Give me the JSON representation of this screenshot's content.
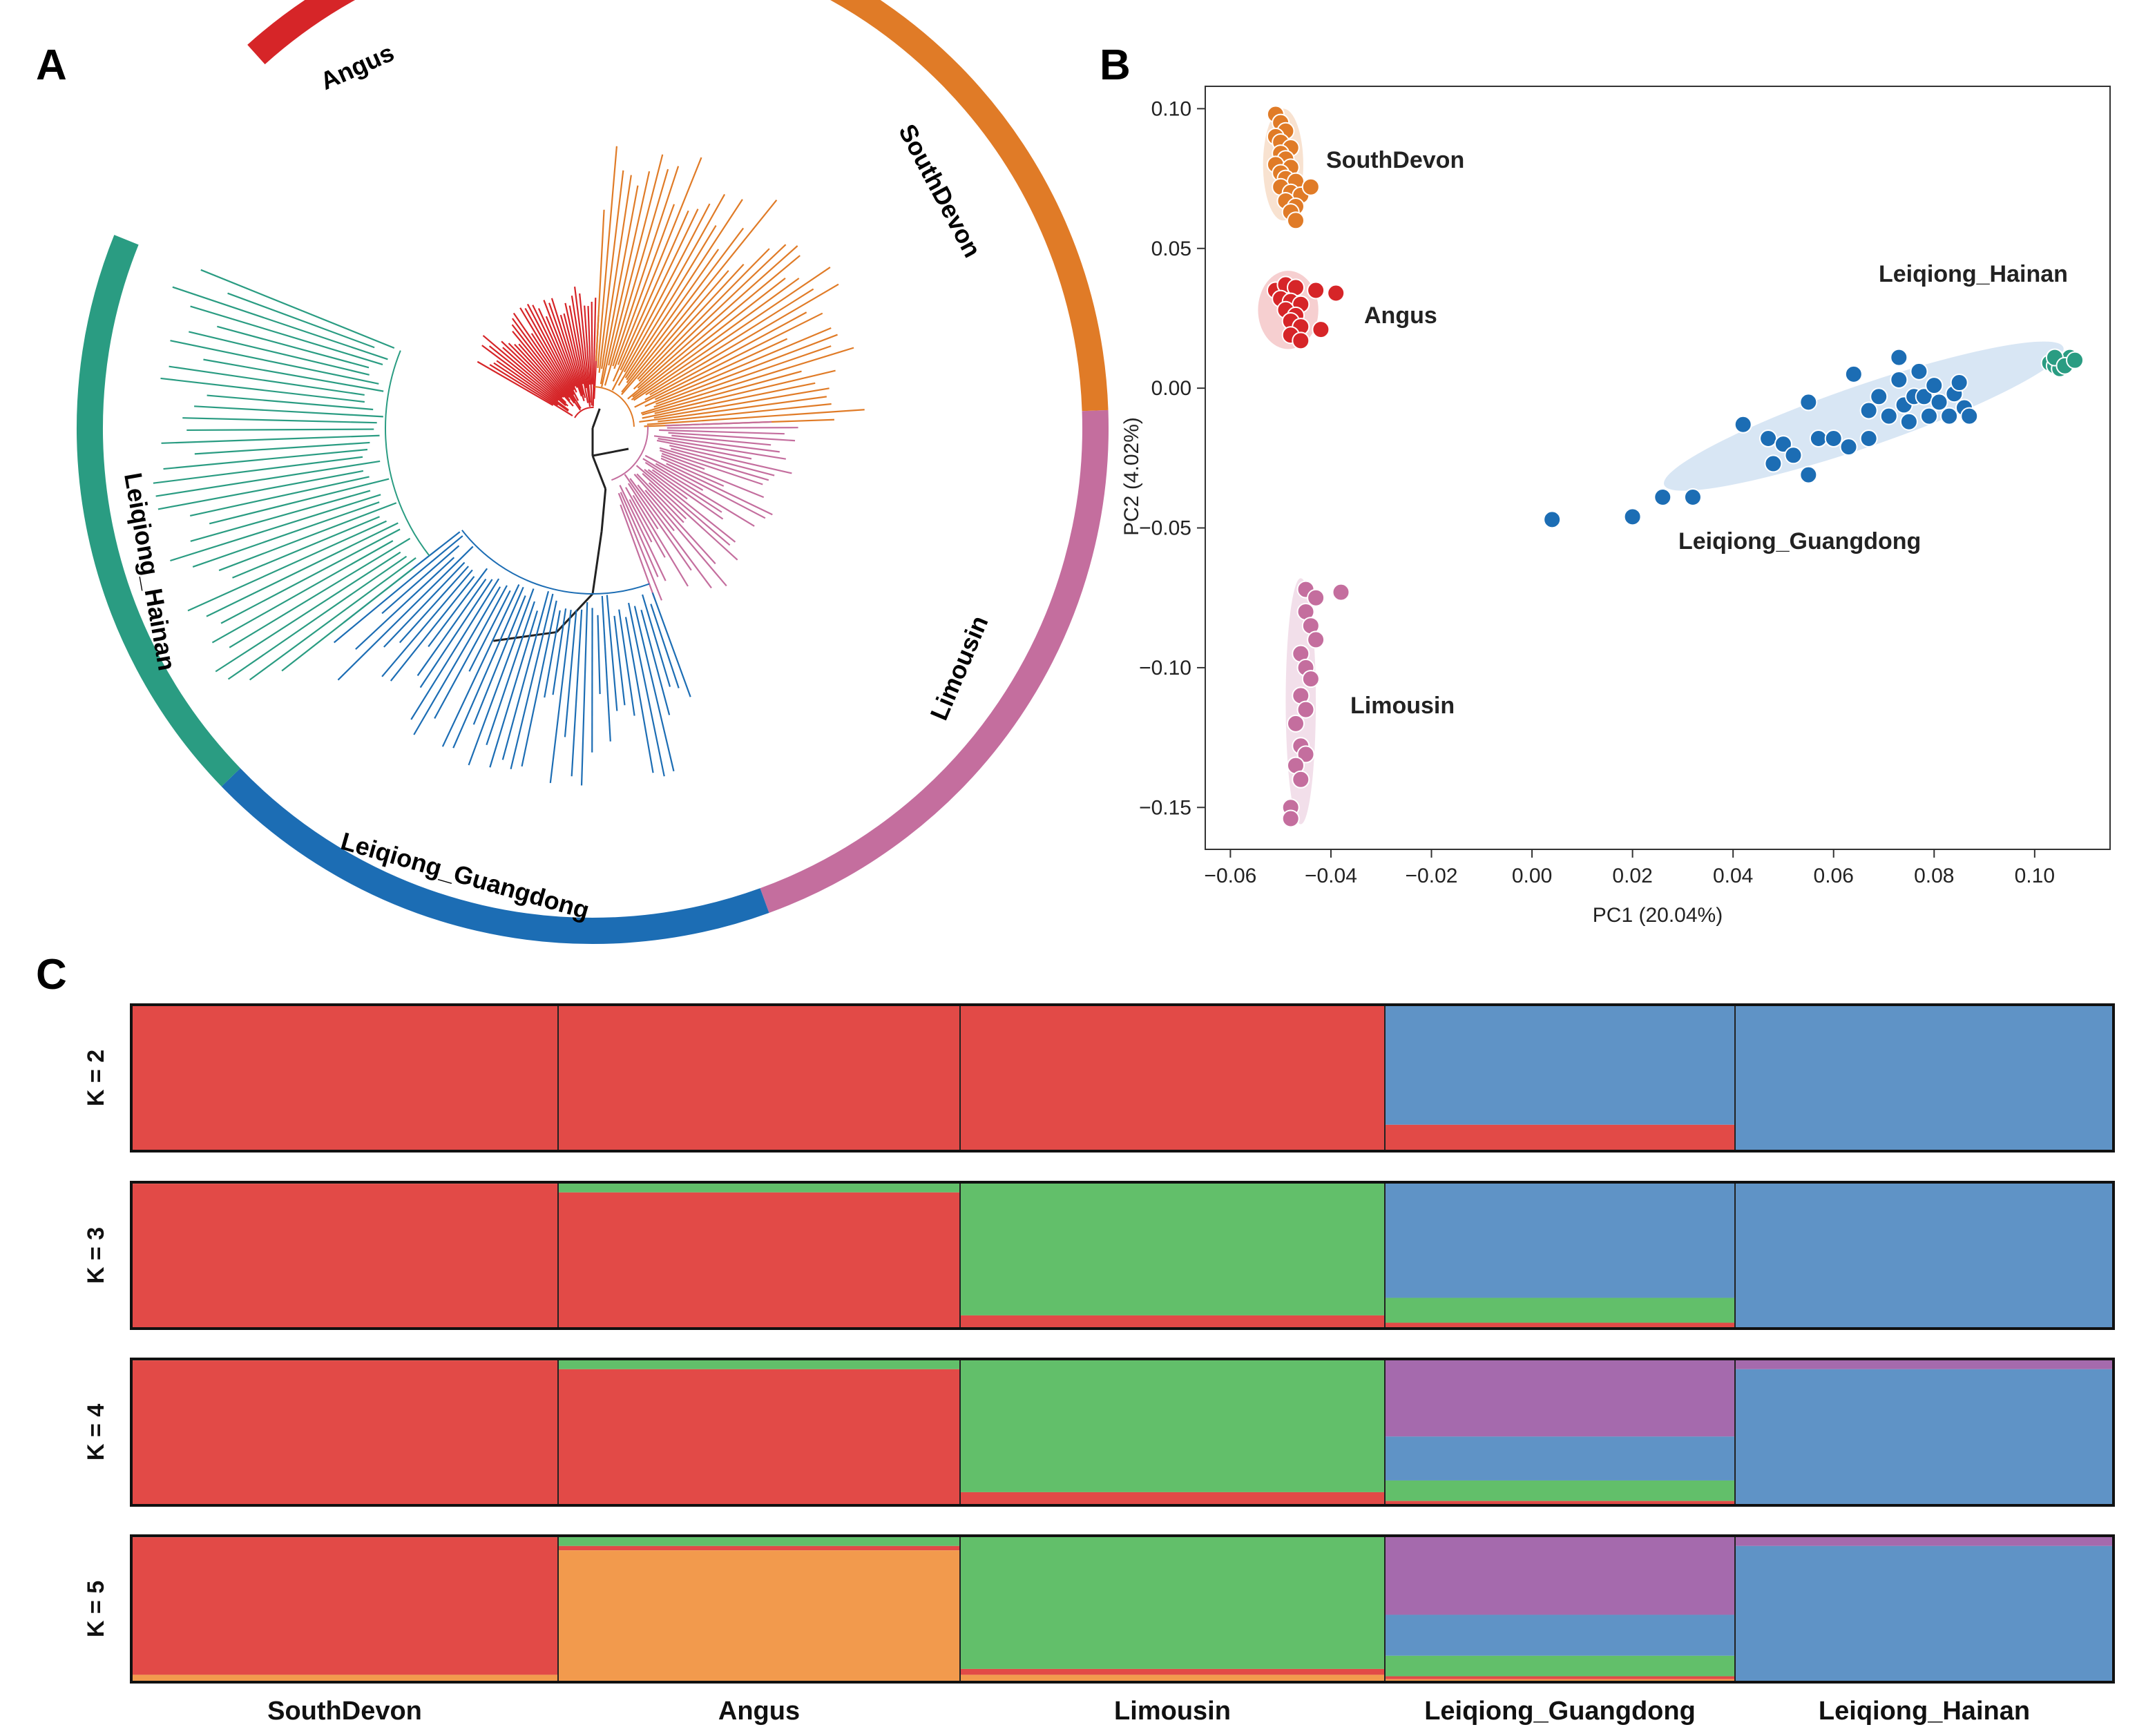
{
  "panels": {
    "a": "A",
    "b": "B",
    "c": "C"
  },
  "colors": {
    "SouthDevon": "#e07b27",
    "Angus": "#d62528",
    "Limousin": "#c46e9e",
    "Leiqiong_Guangdong": "#1c6db4",
    "Leiqiong_Hainan": "#2a9c82",
    "adm_red": "#e24a47",
    "adm_blue": "#5f93c6",
    "adm_green": "#62bf6a",
    "adm_purple": "#a56aad",
    "adm_orange": "#f29a4d"
  },
  "tree": {
    "groups": [
      {
        "name": "Angus",
        "label": "Angus"
      },
      {
        "name": "SouthDevon",
        "label": "SouthDevon"
      },
      {
        "name": "Limousin",
        "label": "Limousin"
      },
      {
        "name": "Leiqiong_Guangdong",
        "label": "Leiqiong_Guangdong"
      },
      {
        "name": "Leiqiong_Hainan",
        "label": "Leiqiong_Hainan"
      }
    ]
  },
  "chart_data": [
    {
      "type": "scatter",
      "title": "",
      "xlabel": "PC1 (20.04%)",
      "ylabel": "PC2 (4.02%)",
      "xlim": [
        -0.065,
        0.115
      ],
      "ylim": [
        -0.165,
        0.108
      ],
      "xticks": [
        -0.06,
        -0.04,
        -0.02,
        0.0,
        0.02,
        0.04,
        0.06,
        0.08,
        0.1
      ],
      "xtick_labels": [
        "−0.06",
        "−0.04",
        "−0.02",
        "0.00",
        "0.02",
        "0.04",
        "0.06",
        "0.08",
        "0.10"
      ],
      "yticks": [
        0.1,
        0.05,
        0.0,
        -0.05,
        -0.1,
        -0.15
      ],
      "ytick_labels": [
        "0.10",
        "0.05",
        "0.00",
        "−0.05",
        "−0.10",
        "−0.15"
      ],
      "grid": false,
      "series": [
        {
          "name": "SouthDevon",
          "label": "SouthDevon",
          "ellipse": {
            "cx": -0.0495,
            "cy": 0.08,
            "rx": 0.004,
            "ry": 0.02
          },
          "points": [
            [
              -0.051,
              0.098
            ],
            [
              -0.05,
              0.095
            ],
            [
              -0.049,
              0.092
            ],
            [
              -0.051,
              0.09
            ],
            [
              -0.05,
              0.088
            ],
            [
              -0.048,
              0.086
            ],
            [
              -0.05,
              0.084
            ],
            [
              -0.049,
              0.082
            ],
            [
              -0.051,
              0.08
            ],
            [
              -0.048,
              0.079
            ],
            [
              -0.05,
              0.077
            ],
            [
              -0.049,
              0.075
            ],
            [
              -0.047,
              0.074
            ],
            [
              -0.05,
              0.072
            ],
            [
              -0.048,
              0.07
            ],
            [
              -0.046,
              0.069
            ],
            [
              -0.044,
              0.072
            ],
            [
              -0.049,
              0.067
            ],
            [
              -0.047,
              0.065
            ],
            [
              -0.048,
              0.063
            ],
            [
              -0.047,
              0.06
            ]
          ]
        },
        {
          "name": "Angus",
          "label": "Angus",
          "ellipse": {
            "cx": -0.0485,
            "cy": 0.028,
            "rx": 0.006,
            "ry": 0.014
          },
          "points": [
            [
              -0.051,
              0.035
            ],
            [
              -0.049,
              0.037
            ],
            [
              -0.047,
              0.036
            ],
            [
              -0.043,
              0.035
            ],
            [
              -0.039,
              0.034
            ],
            [
              -0.05,
              0.032
            ],
            [
              -0.048,
              0.031
            ],
            [
              -0.046,
              0.03
            ],
            [
              -0.049,
              0.028
            ],
            [
              -0.047,
              0.026
            ],
            [
              -0.048,
              0.024
            ],
            [
              -0.046,
              0.022
            ],
            [
              -0.042,
              0.021
            ],
            [
              -0.048,
              0.019
            ],
            [
              -0.046,
              0.017
            ]
          ]
        },
        {
          "name": "Limousin",
          "label": "Limousin",
          "ellipse": {
            "cx": -0.046,
            "cy": -0.112,
            "rx": 0.003,
            "ry": 0.044
          },
          "points": [
            [
              -0.045,
              -0.072
            ],
            [
              -0.043,
              -0.075
            ],
            [
              -0.038,
              -0.073
            ],
            [
              -0.045,
              -0.08
            ],
            [
              -0.044,
              -0.085
            ],
            [
              -0.043,
              -0.09
            ],
            [
              -0.046,
              -0.095
            ],
            [
              -0.045,
              -0.1
            ],
            [
              -0.044,
              -0.104
            ],
            [
              -0.046,
              -0.11
            ],
            [
              -0.045,
              -0.115
            ],
            [
              -0.047,
              -0.12
            ],
            [
              -0.046,
              -0.128
            ],
            [
              -0.045,
              -0.131
            ],
            [
              -0.047,
              -0.135
            ],
            [
              -0.046,
              -0.14
            ],
            [
              -0.048,
              -0.15
            ],
            [
              -0.048,
              -0.154
            ]
          ]
        },
        {
          "name": "Leiqiong_Guangdong",
          "label": "Leiqiong_Guangdong",
          "ellipse": {
            "cx": 0.066,
            "cy": -0.01,
            "rx": 0.042,
            "ry": 0.011,
            "angle": -19
          },
          "points": [
            [
              0.004,
              -0.047
            ],
            [
              0.02,
              -0.046
            ],
            [
              0.026,
              -0.039
            ],
            [
              0.032,
              -0.039
            ],
            [
              0.042,
              -0.013
            ],
            [
              0.047,
              -0.018
            ],
            [
              0.048,
              -0.027
            ],
            [
              0.05,
              -0.02
            ],
            [
              0.052,
              -0.024
            ],
            [
              0.055,
              -0.005
            ],
            [
              0.055,
              -0.031
            ],
            [
              0.057,
              -0.018
            ],
            [
              0.06,
              -0.018
            ],
            [
              0.063,
              -0.021
            ],
            [
              0.064,
              0.005
            ],
            [
              0.067,
              -0.018
            ],
            [
              0.067,
              -0.008
            ],
            [
              0.069,
              -0.003
            ],
            [
              0.071,
              -0.01
            ],
            [
              0.073,
              0.011
            ],
            [
              0.073,
              0.003
            ],
            [
              0.074,
              -0.006
            ],
            [
              0.075,
              -0.012
            ],
            [
              0.076,
              -0.003
            ],
            [
              0.077,
              0.006
            ],
            [
              0.078,
              -0.003
            ],
            [
              0.079,
              -0.01
            ],
            [
              0.08,
              0.001
            ],
            [
              0.081,
              -0.005
            ],
            [
              0.083,
              -0.01
            ],
            [
              0.084,
              -0.002
            ],
            [
              0.085,
              0.002
            ],
            [
              0.086,
              -0.007
            ],
            [
              0.087,
              -0.01
            ]
          ]
        },
        {
          "name": "Leiqiong_Hainan",
          "label": "Leiqiong_Hainan",
          "ellipse": {
            "cx": 0.105,
            "cy": 0.009,
            "rx": 0.003,
            "ry": 0.003
          },
          "points": [
            [
              0.103,
              0.009
            ],
            [
              0.104,
              0.008
            ],
            [
              0.105,
              0.01
            ],
            [
              0.106,
              0.009
            ],
            [
              0.107,
              0.011
            ],
            [
              0.105,
              0.007
            ],
            [
              0.104,
              0.011
            ],
            [
              0.106,
              0.008
            ],
            [
              0.108,
              0.01
            ]
          ]
        }
      ]
    },
    {
      "type": "bar",
      "stacked": true,
      "title": "",
      "xlabel": "",
      "ylabel": "",
      "ylim": [
        0,
        1
      ],
      "categories": [
        "SouthDevon",
        "Angus",
        "Limousin",
        "Leiqiong_Guangdong",
        "Leiqiong_Hainan"
      ],
      "category_labels": [
        "SouthDevon",
        "Angus",
        "Limousin",
        "Leiqiong_Guangdong",
        "Leiqiong_Hainan"
      ],
      "rows": [
        {
          "label": "K = 2",
          "components": [
            "adm_red",
            "adm_blue"
          ],
          "groups": [
            {
              "name": "SouthDevon",
              "values": [
                1.0,
                0.0
              ]
            },
            {
              "name": "Angus",
              "values": [
                1.0,
                0.0
              ]
            },
            {
              "name": "Limousin",
              "values": [
                1.0,
                0.0
              ]
            },
            {
              "name": "Leiqiong_Guangdong",
              "values": [
                0.18,
                0.82
              ]
            },
            {
              "name": "Leiqiong_Hainan",
              "values": [
                0.0,
                1.0
              ]
            }
          ]
        },
        {
          "label": "K = 3",
          "components": [
            "adm_red",
            "adm_green",
            "adm_blue"
          ],
          "groups": [
            {
              "name": "SouthDevon",
              "values": [
                0.99,
                0.01,
                0.0
              ]
            },
            {
              "name": "Angus",
              "values": [
                0.93,
                0.07,
                0.0
              ]
            },
            {
              "name": "Limousin",
              "values": [
                0.09,
                0.91,
                0.0
              ]
            },
            {
              "name": "Leiqiong_Guangdong",
              "values": [
                0.04,
                0.17,
                0.79
              ]
            },
            {
              "name": "Leiqiong_Hainan",
              "values": [
                0.0,
                0.0,
                1.0
              ]
            }
          ]
        },
        {
          "label": "K = 4",
          "components": [
            "adm_red",
            "adm_green",
            "adm_blue",
            "adm_purple"
          ],
          "groups": [
            {
              "name": "SouthDevon",
              "values": [
                0.99,
                0.01,
                0.0,
                0.0
              ]
            },
            {
              "name": "Angus",
              "values": [
                0.93,
                0.07,
                0.0,
                0.0
              ]
            },
            {
              "name": "Limousin",
              "values": [
                0.09,
                0.91,
                0.0,
                0.0
              ]
            },
            {
              "name": "Leiqiong_Guangdong",
              "values": [
                0.03,
                0.14,
                0.3,
                0.53
              ]
            },
            {
              "name": "Leiqiong_Hainan",
              "values": [
                0.0,
                0.0,
                0.93,
                0.07
              ]
            }
          ]
        },
        {
          "label": "K = 5",
          "components": [
            "adm_orange",
            "adm_red",
            "adm_green",
            "adm_blue",
            "adm_purple"
          ],
          "groups": [
            {
              "name": "SouthDevon",
              "values": [
                0.05,
                0.94,
                0.01,
                0.0,
                0.0
              ]
            },
            {
              "name": "Angus",
              "values": [
                0.9,
                0.03,
                0.07,
                0.0,
                0.0
              ]
            },
            {
              "name": "Limousin",
              "values": [
                0.05,
                0.04,
                0.91,
                0.0,
                0.0
              ]
            },
            {
              "name": "Leiqiong_Guangdong",
              "values": [
                0.02,
                0.02,
                0.14,
                0.28,
                0.54
              ]
            },
            {
              "name": "Leiqiong_Hainan",
              "values": [
                0.0,
                0.0,
                0.0,
                0.93,
                0.07
              ]
            }
          ]
        }
      ]
    }
  ]
}
